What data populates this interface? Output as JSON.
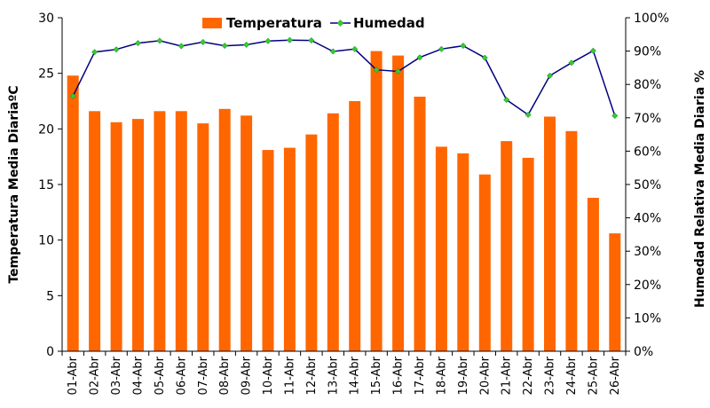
{
  "chart_data": {
    "type": "bar+line",
    "categories": [
      "01-Abr",
      "02-Abr",
      "03-Abr",
      "04-Abr",
      "05-Abr",
      "06-Abr",
      "07-Abr",
      "08-Abr",
      "09-Abr",
      "10-Abr",
      "11-Abr",
      "12-Abr",
      "13-Abr",
      "14-Abr",
      "15-Abr",
      "16-Abr",
      "17-Abr",
      "18-Abr",
      "19-Abr",
      "20-Abr",
      "21-Abr",
      "22-Abr",
      "23-Abr",
      "24-Abr",
      "25-Abr",
      "26-Abr"
    ],
    "series": [
      {
        "name": "Temperatura",
        "kind": "bar",
        "axis": "left",
        "color": "#FF6600",
        "values": [
          24.8,
          21.6,
          20.6,
          20.9,
          21.6,
          21.6,
          20.5,
          21.8,
          21.2,
          18.1,
          18.3,
          19.5,
          21.4,
          22.5,
          27.0,
          26.6,
          22.9,
          18.4,
          17.8,
          15.9,
          18.9,
          17.4,
          21.1,
          19.8,
          13.8,
          10.6
        ]
      },
      {
        "name": "Humedad",
        "kind": "line",
        "axis": "right",
        "color": "#000080",
        "marker_color": "#33CC33",
        "values": [
          76.5,
          89.7,
          90.5,
          92.4,
          93.1,
          91.5,
          92.7,
          91.6,
          91.9,
          93.0,
          93.3,
          93.2,
          89.9,
          90.6,
          84.4,
          83.9,
          88.1,
          90.6,
          91.6,
          88.0,
          75.4,
          70.9,
          82.6,
          86.5,
          90.1,
          70.6
        ]
      }
    ],
    "left_axis": {
      "label": "Temperatura Media DiariaºC",
      "min": 0,
      "max": 30,
      "ticks": [
        "0",
        "5",
        "10",
        "15",
        "20",
        "25",
        "30"
      ]
    },
    "right_axis": {
      "label": "Humedad Relativa Media Diaria  %",
      "min": 0,
      "max": 100,
      "ticks": [
        "0%",
        "10%",
        "20%",
        "30%",
        "40%",
        "50%",
        "60%",
        "70%",
        "80%",
        "90%",
        "100%"
      ]
    },
    "legend": [
      "Temperatura",
      "Humedad"
    ],
    "legend_position": "top-center",
    "grid": false
  }
}
